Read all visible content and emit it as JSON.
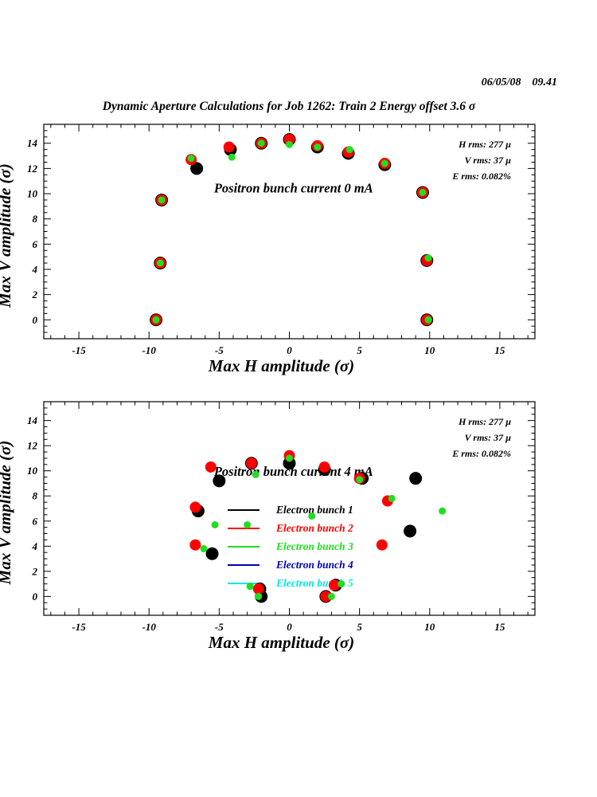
{
  "header": {
    "date": "06/05/08",
    "time": "09.41",
    "title": "Dynamic Aperture Calculations for Job 1262:  Train 2   Energy offset  3.6 σ"
  },
  "colors": {
    "black": "#000000",
    "red": "#ff0000",
    "green": "#22dd22",
    "blue": "#0000b4",
    "cyan": "#00e6e6"
  },
  "chart_data": [
    {
      "type": "scatter",
      "label": "Positron bunch current  0 mA",
      "xlabel": "Max H amplitude (σ)",
      "ylabel": "Max V amplitude (σ)",
      "xlim": [
        -17.5,
        17.5
      ],
      "ylim": [
        -1.5,
        15.5
      ],
      "xticks": [
        -15,
        -10,
        -5,
        0,
        5,
        10,
        15
      ],
      "yticks": [
        0,
        2,
        4,
        6,
        8,
        10,
        12,
        14
      ],
      "stats": [
        "H rms: 277 µ",
        "V rms: 37 µ",
        "E rms: 0.082%"
      ],
      "series": [
        {
          "name": "Electron bunch 1",
          "color": "black",
          "size": 8,
          "points": [
            [
              -9.5,
              0
            ],
            [
              -9.2,
              4.5
            ],
            [
              -9.1,
              9.5
            ],
            [
              -6.6,
              12.0
            ],
            [
              -4.2,
              13.5
            ],
            [
              -2.0,
              14.0
            ],
            [
              0.0,
              14.3
            ],
            [
              2.0,
              13.7
            ],
            [
              4.2,
              13.2
            ],
            [
              6.8,
              12.3
            ],
            [
              9.5,
              10.1
            ],
            [
              9.8,
              4.7
            ],
            [
              9.8,
              0
            ]
          ]
        },
        {
          "name": "Electron bunch 2",
          "color": "red",
          "size": 7,
          "points": [
            [
              -9.5,
              0
            ],
            [
              -9.2,
              4.5
            ],
            [
              -9.1,
              9.5
            ],
            [
              -7.0,
              12.7
            ],
            [
              -4.3,
              13.7
            ],
            [
              -2.0,
              14.0
            ],
            [
              0.0,
              14.3
            ],
            [
              2.0,
              13.8
            ],
            [
              4.2,
              13.3
            ],
            [
              6.8,
              12.4
            ],
            [
              9.5,
              10.1
            ],
            [
              9.8,
              4.7
            ],
            [
              9.8,
              0
            ]
          ]
        },
        {
          "name": "Electron bunch 3",
          "color": "green",
          "size": 4.5,
          "points": [
            [
              -9.5,
              0
            ],
            [
              -9.2,
              4.5
            ],
            [
              -9.1,
              9.5
            ],
            [
              -7.0,
              12.8
            ],
            [
              -4.1,
              12.9
            ],
            [
              -2.0,
              14.0
            ],
            [
              0.0,
              13.9
            ],
            [
              2.0,
              13.7
            ],
            [
              4.3,
              13.5
            ],
            [
              6.8,
              12.4
            ],
            [
              9.5,
              10.1
            ],
            [
              9.9,
              4.9
            ],
            [
              9.9,
              0
            ]
          ]
        }
      ]
    },
    {
      "type": "scatter",
      "label": "Positron bunch current  4 mA",
      "xlabel": "Max H amplitude (σ)",
      "ylabel": "Max V amplitude (σ)",
      "xlim": [
        -17.5,
        17.5
      ],
      "ylim": [
        -1.5,
        15.5
      ],
      "xticks": [
        -15,
        -10,
        -5,
        0,
        5,
        10,
        15
      ],
      "yticks": [
        0,
        2,
        4,
        6,
        8,
        10,
        12,
        14
      ],
      "stats": [
        "H rms: 277 µ",
        "V rms: 37 µ",
        "E rms: 0.082%"
      ],
      "legend": [
        {
          "name": "Electron bunch 1",
          "color": "black"
        },
        {
          "name": "Electron bunch 2",
          "color": "red"
        },
        {
          "name": "Electron bunch 3",
          "color": "green"
        },
        {
          "name": "Electron bunch 4",
          "color": "blue"
        },
        {
          "name": "Electron bunch 5",
          "color": "cyan"
        }
      ],
      "series": [
        {
          "name": "Electron bunch 1",
          "color": "black",
          "size": 8,
          "points": [
            [
              -2.0,
              0.0
            ],
            [
              -2.1,
              0.6
            ],
            [
              -5.5,
              3.4
            ],
            [
              -6.5,
              6.8
            ],
            [
              -5.0,
              9.2
            ],
            [
              -2.7,
              10.6
            ],
            [
              0.0,
              10.6
            ],
            [
              2.5,
              10.1
            ],
            [
              5.2,
              9.4
            ],
            [
              9.0,
              9.4
            ],
            [
              8.6,
              5.2
            ],
            [
              2.6,
              0.0
            ],
            [
              3.3,
              0.9
            ]
          ]
        },
        {
          "name": "Electron bunch 2",
          "color": "red",
          "size": 7,
          "points": [
            [
              -2.2,
              0.6
            ],
            [
              -6.7,
              4.1
            ],
            [
              -6.7,
              7.1
            ],
            [
              -5.6,
              10.3
            ],
            [
              -2.7,
              10.6
            ],
            [
              0.0,
              11.2
            ],
            [
              2.5,
              10.3
            ],
            [
              5.0,
              9.4
            ],
            [
              7.0,
              7.6
            ],
            [
              6.6,
              4.1
            ],
            [
              3.2,
              0.9
            ],
            [
              2.6,
              0.0
            ]
          ]
        },
        {
          "name": "Electron bunch 3",
          "color": "green",
          "size": 4.5,
          "points": [
            [
              -2.2,
              0.0
            ],
            [
              -2.8,
              0.8
            ],
            [
              -6.1,
              3.8
            ],
            [
              -5.3,
              5.7
            ],
            [
              -3.0,
              5.7
            ],
            [
              -2.4,
              9.7
            ],
            [
              0.0,
              11.0
            ],
            [
              1.6,
              6.4
            ],
            [
              5.0,
              9.3
            ],
            [
              7.3,
              7.8
            ],
            [
              10.9,
              6.8
            ],
            [
              3.0,
              0.0
            ],
            [
              3.7,
              1.0
            ]
          ]
        }
      ]
    }
  ]
}
